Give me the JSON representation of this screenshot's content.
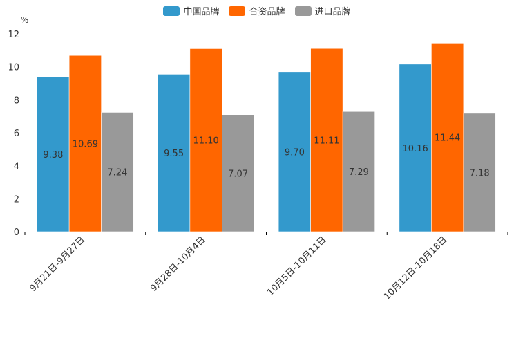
{
  "chart_data": {
    "type": "bar",
    "title": "",
    "ylabel": "%",
    "xlabel": "",
    "ylim": [
      0,
      12
    ],
    "yticks": [
      0,
      2,
      4,
      6,
      8,
      10,
      12
    ],
    "categories": [
      "9月21日-9月27日",
      "9月28日-10月4日",
      "10月5日-10月11日",
      "10月12日-10月18日"
    ],
    "series": [
      {
        "name": "中国品牌",
        "color": "#3399cc",
        "values": [
          9.38,
          9.55,
          9.7,
          10.16
        ]
      },
      {
        "name": "合资品牌",
        "color": "#ff6600",
        "values": [
          10.69,
          11.1,
          11.11,
          11.44
        ]
      },
      {
        "name": "进口品牌",
        "color": "#999999",
        "values": [
          7.24,
          7.07,
          7.29,
          7.18
        ]
      }
    ],
    "data_labels": [
      [
        "9.38",
        "9.55",
        "9.70",
        "10.16"
      ],
      [
        "10.69",
        "11.10",
        "11.11",
        "11.44"
      ],
      [
        "7.24",
        "7.07",
        "7.29",
        "7.18"
      ]
    ],
    "legend_position": "top-center"
  }
}
